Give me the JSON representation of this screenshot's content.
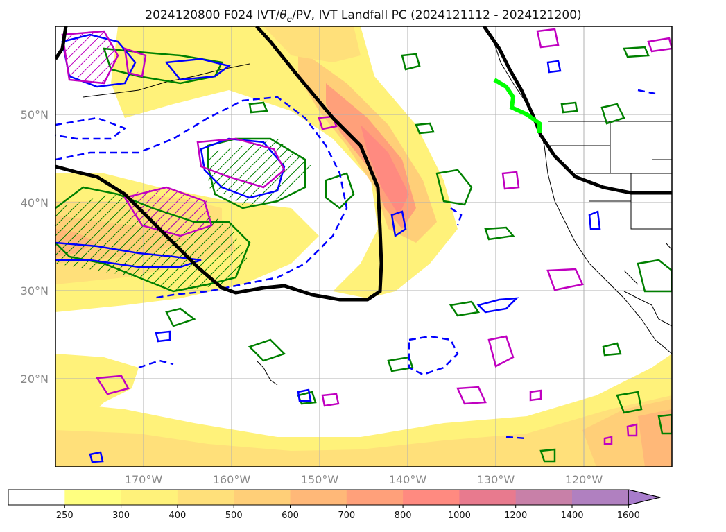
{
  "map": {
    "title": "2024120800 F024 IVT/θe/PV, IVT Landfall PC (2024121112 - 2024121200)",
    "title_parts": {
      "prefix": "2024120800 F024 IVT/",
      "theta": "θ",
      "sub": "e",
      "suffix": "/PV, IVT Landfall PC (2024121112 - 2024121200)"
    },
    "projection": "lat-lon",
    "lon_range": [
      -180,
      -110
    ],
    "lat_range": [
      10,
      60
    ],
    "lat_ticks": [
      "50°N",
      "40°N",
      "30°N",
      "20°N"
    ],
    "lon_ticks": [
      "170°W",
      "160°W",
      "150°W",
      "140°W",
      "130°W",
      "120°W"
    ],
    "gridlines": true,
    "colors": {
      "pv_contour": "#000000",
      "theta_e_positive": "#0000ff",
      "theta_e_negative_dashed": "#0000ff",
      "vorticity_contour_green": "#008000",
      "magenta_contour": "#c000c0",
      "landfall_marker": "#00ff00"
    }
  },
  "colorbar": {
    "levels": [
      "250",
      "300",
      "400",
      "500",
      "600",
      "700",
      "800",
      "1000",
      "1200",
      "1400",
      "1600"
    ],
    "colors": [
      "#ffffff",
      "#ffff80",
      "#fff27a",
      "#ffe07a",
      "#ffcf78",
      "#ffb878",
      "#ffa07a",
      "#ff8a80",
      "#e87a8e",
      "#c880a8",
      "#b080c0",
      "#a87ccc"
    ],
    "extend": "max"
  }
}
